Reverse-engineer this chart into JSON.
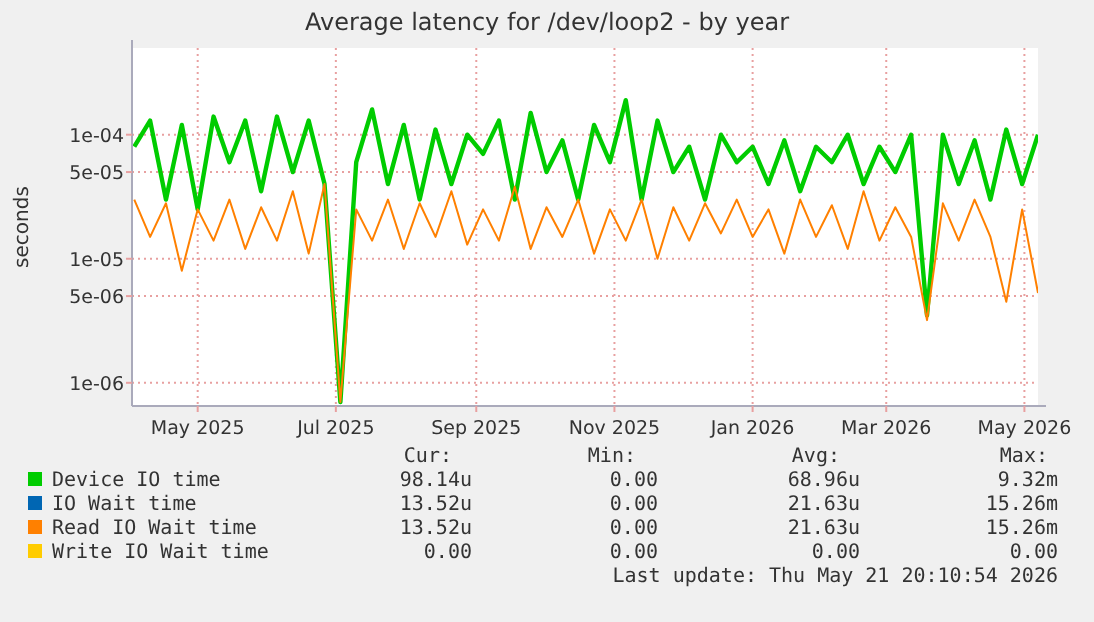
{
  "chart_data": {
    "type": "line",
    "title": "Average latency for /dev/loop2 - by year",
    "ylabel": "seconds",
    "log": "y",
    "grid": true,
    "legend": "bottom",
    "line_style": "solid",
    "marker": "none",
    "x": [
      "2025-04-03",
      "2025-04-10",
      "2025-04-17",
      "2025-04-24",
      "2025-05-01",
      "2025-05-08",
      "2025-05-15",
      "2025-05-22",
      "2025-05-29",
      "2025-06-05",
      "2025-06-12",
      "2025-06-19",
      "2025-06-26",
      "2025-07-03",
      "2025-07-10",
      "2025-07-17",
      "2025-07-24",
      "2025-07-31",
      "2025-08-07",
      "2025-08-14",
      "2025-08-21",
      "2025-08-28",
      "2025-09-04",
      "2025-09-11",
      "2025-09-18",
      "2025-09-25",
      "2025-10-02",
      "2025-10-09",
      "2025-10-16",
      "2025-10-23",
      "2025-10-30",
      "2025-11-06",
      "2025-11-13",
      "2025-11-20",
      "2025-11-27",
      "2025-12-04",
      "2025-12-11",
      "2025-12-18",
      "2025-12-25",
      "2026-01-01",
      "2026-01-08",
      "2026-01-15",
      "2026-01-22",
      "2026-01-29",
      "2026-02-05",
      "2026-02-12",
      "2026-02-19",
      "2026-02-26",
      "2026-03-05",
      "2026-03-12",
      "2026-03-19",
      "2026-03-26",
      "2026-04-02",
      "2026-04-09",
      "2026-04-16",
      "2026-04-23",
      "2026-04-30",
      "2026-05-07"
    ],
    "xlim": [
      "2025-04-02",
      "2026-05-07"
    ],
    "xticks": [
      {
        "value": "2025-05-01",
        "label": "May 2025"
      },
      {
        "value": "2025-07-01",
        "label": "Jul 2025"
      },
      {
        "value": "2025-09-01",
        "label": "Sep 2025"
      },
      {
        "value": "2025-11-01",
        "label": "Nov 2025"
      },
      {
        "value": "2026-01-01",
        "label": "Jan 2026"
      },
      {
        "value": "2026-03-01",
        "label": "Mar 2026"
      },
      {
        "value": "2026-05-01",
        "label": "May 2026"
      }
    ],
    "ylim": [
      6.5e-07,
      0.0005
    ],
    "yticks": [
      {
        "value": 1e-06,
        "label": "1e-06"
      },
      {
        "value": 5e-06,
        "label": "5e-06"
      },
      {
        "value": 1e-05,
        "label": "1e-05"
      },
      {
        "value": 5e-05,
        "label": "5e-05"
      },
      {
        "value": 0.0001,
        "label": "1e-04"
      }
    ],
    "series": [
      {
        "name": "Device IO time",
        "color": "#00cc00",
        "values": [
          8e-05,
          0.00013,
          3e-05,
          0.00012,
          2.5e-05,
          0.00014,
          6e-05,
          0.00013,
          3.5e-05,
          0.00014,
          5e-05,
          0.00013,
          4e-05,
          7e-07,
          6e-05,
          0.00016,
          4e-05,
          0.00012,
          3e-05,
          0.00011,
          4e-05,
          0.0001,
          7e-05,
          0.00013,
          3e-05,
          0.00015,
          5e-05,
          9e-05,
          3e-05,
          0.00012,
          6e-05,
          0.00019,
          3e-05,
          0.00013,
          5e-05,
          8e-05,
          3e-05,
          0.0001,
          6e-05,
          8e-05,
          4e-05,
          9e-05,
          3.5e-05,
          8e-05,
          6e-05,
          0.0001,
          4e-05,
          8e-05,
          5e-05,
          0.0001,
          3.5e-06,
          0.0001,
          4e-05,
          9e-05,
          3e-05,
          0.00011,
          4e-05,
          0.0001
        ]
      },
      {
        "name": "IO Wait time",
        "color": "#0066b3",
        "values": [
          null,
          null,
          null,
          null,
          null,
          null,
          null,
          null,
          null,
          null,
          null,
          null,
          null,
          null,
          null,
          null,
          null,
          null,
          null,
          null,
          null,
          null,
          null,
          null,
          null,
          null,
          null,
          null,
          null,
          null,
          null,
          null,
          null,
          null,
          null,
          null,
          null,
          null,
          null,
          null,
          null,
          null,
          null,
          null,
          null,
          null,
          null,
          null,
          null,
          null,
          null,
          null,
          null,
          null,
          null,
          null,
          null,
          null
        ]
      },
      {
        "name": "Read IO Wait time",
        "color": "#ff8000",
        "values": [
          3e-05,
          1.5e-05,
          2.8e-05,
          8e-06,
          2.5e-05,
          1.4e-05,
          3e-05,
          1.2e-05,
          2.6e-05,
          1.4e-05,
          3.5e-05,
          1.1e-05,
          4e-05,
          7e-07,
          2.5e-05,
          1.4e-05,
          3e-05,
          1.2e-05,
          2.8e-05,
          1.5e-05,
          3.5e-05,
          1.3e-05,
          2.5e-05,
          1.4e-05,
          3.8e-05,
          1.2e-05,
          2.6e-05,
          1.5e-05,
          3e-05,
          1.1e-05,
          2.5e-05,
          1.4e-05,
          3e-05,
          1e-05,
          2.6e-05,
          1.4e-05,
          2.8e-05,
          1.6e-05,
          3e-05,
          1.5e-05,
          2.5e-05,
          1.1e-05,
          3e-05,
          1.5e-05,
          2.7e-05,
          1.2e-05,
          3.5e-05,
          1.4e-05,
          2.6e-05,
          1.5e-05,
          3.2e-06,
          2.8e-05,
          1.4e-05,
          3e-05,
          1.5e-05,
          4.5e-06,
          2.5e-05,
          5.3e-06
        ]
      },
      {
        "name": "Write IO Wait time",
        "color": "#ffcc00",
        "values": [
          null,
          null,
          null,
          null,
          null,
          null,
          null,
          null,
          null,
          null,
          null,
          null,
          null,
          null,
          null,
          null,
          null,
          null,
          null,
          null,
          null,
          null,
          null,
          null,
          null,
          null,
          null,
          null,
          null,
          null,
          null,
          null,
          null,
          null,
          null,
          null,
          null,
          null,
          null,
          null,
          null,
          null,
          null,
          null,
          null,
          null,
          null,
          null,
          null,
          null,
          null,
          null,
          null,
          null,
          null,
          null,
          null,
          null
        ]
      }
    ],
    "annotations": [
      "Cur:",
      "Min:",
      "Avg:",
      "Max:",
      "98.14u",
      "0.00",
      "68.96u",
      "9.32m",
      "13.52u",
      "0.00",
      "21.63u",
      "15.26m",
      "13.52u",
      "0.00",
      "21.63u",
      "15.26m",
      "0.00",
      "0.00",
      "0.00",
      "0.00",
      "Last update: Thu May 21 20:10:54 2026"
    ]
  }
}
